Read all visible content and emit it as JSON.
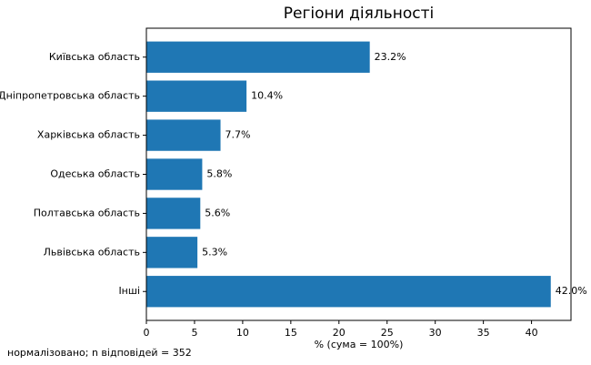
{
  "chart_data": {
    "type": "barh",
    "title": "Регіони діяльності",
    "categories": [
      "Київська область",
      "Дніпропетровська область",
      "Харківська область",
      "Одеська область",
      "Полтавська область",
      "Львівська область",
      "Інші"
    ],
    "values": [
      23.2,
      10.4,
      7.7,
      5.8,
      5.6,
      5.3,
      42.0
    ],
    "value_labels": [
      "23.2%",
      "10.4%",
      "7.7%",
      "5.8%",
      "5.6%",
      "5.3%",
      "42.0%"
    ],
    "color": "#1f77b4",
    "xlabel": "% (сума = 100%)",
    "footnote": "нормалізовано; n відповідей = 352",
    "xlim": [
      0,
      44.1
    ],
    "xticks": [
      0,
      5,
      10,
      15,
      20,
      25,
      30,
      35,
      40
    ],
    "grid": false
  }
}
